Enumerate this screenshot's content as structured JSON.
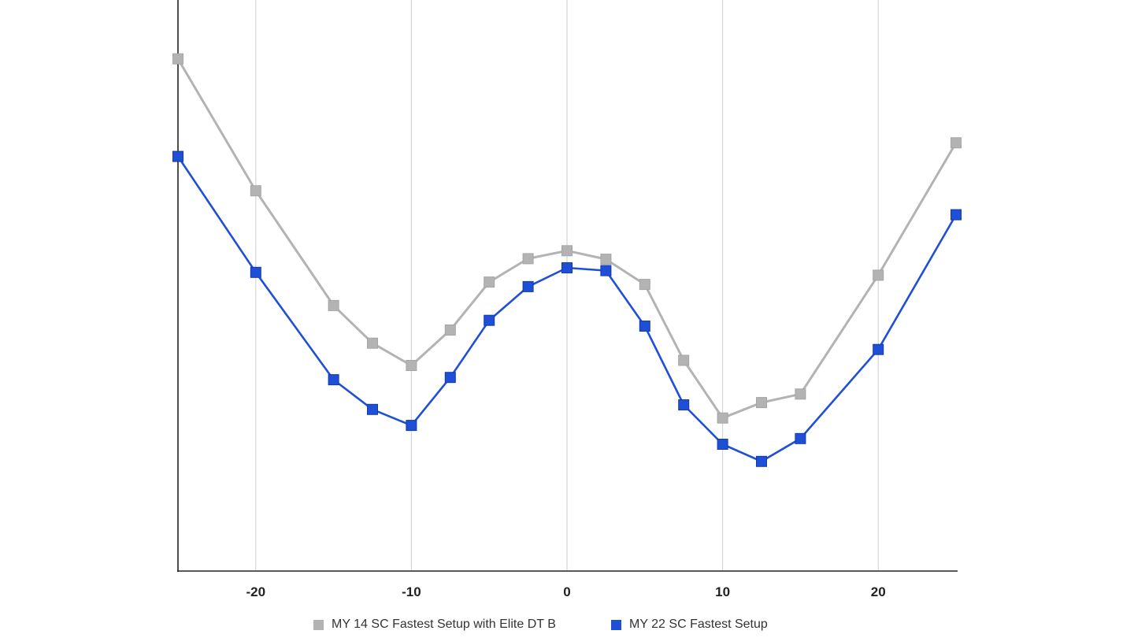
{
  "chart_data": {
    "type": "line",
    "title": "",
    "xlabel": "",
    "ylabel": "",
    "xlim": [
      -25,
      25
    ],
    "ylim": [
      0,
      100
    ],
    "grid": "vertical",
    "legend_position": "bottom",
    "x_ticks": [
      -20,
      -10,
      0,
      10,
      20
    ],
    "x_tick_labels": [
      "-20",
      "-10",
      "0",
      "10",
      "20"
    ],
    "series": [
      {
        "name": "MY 14 SC Fastest Setup with Elite DT B",
        "color": "#b3b3b3",
        "x": [
          -25,
          -20,
          -15,
          -12.5,
          -10,
          -7.5,
          -5,
          -2.5,
          0,
          2.5,
          5,
          7.5,
          10,
          12.5,
          15,
          20,
          25
        ],
        "y": [
          89.7,
          66.6,
          46.5,
          39.9,
          36.0,
          42.2,
          50.6,
          54.7,
          56.1,
          54.6,
          50.2,
          36.9,
          26.8,
          29.5,
          31.0,
          51.8,
          75.0
        ]
      },
      {
        "name": "MY 22 SC Fastest Setup",
        "color": "#1f4fd6",
        "x": [
          -25,
          -20,
          -15,
          -12.5,
          -10,
          -7.5,
          -5,
          -2.5,
          0,
          2.5,
          5,
          7.5,
          10,
          12.5,
          15,
          20,
          25
        ],
        "y": [
          72.6,
          52.3,
          33.5,
          28.3,
          25.5,
          33.9,
          43.9,
          49.8,
          53.1,
          52.6,
          42.9,
          29.1,
          22.2,
          19.2,
          23.2,
          38.8,
          62.4
        ]
      }
    ]
  }
}
